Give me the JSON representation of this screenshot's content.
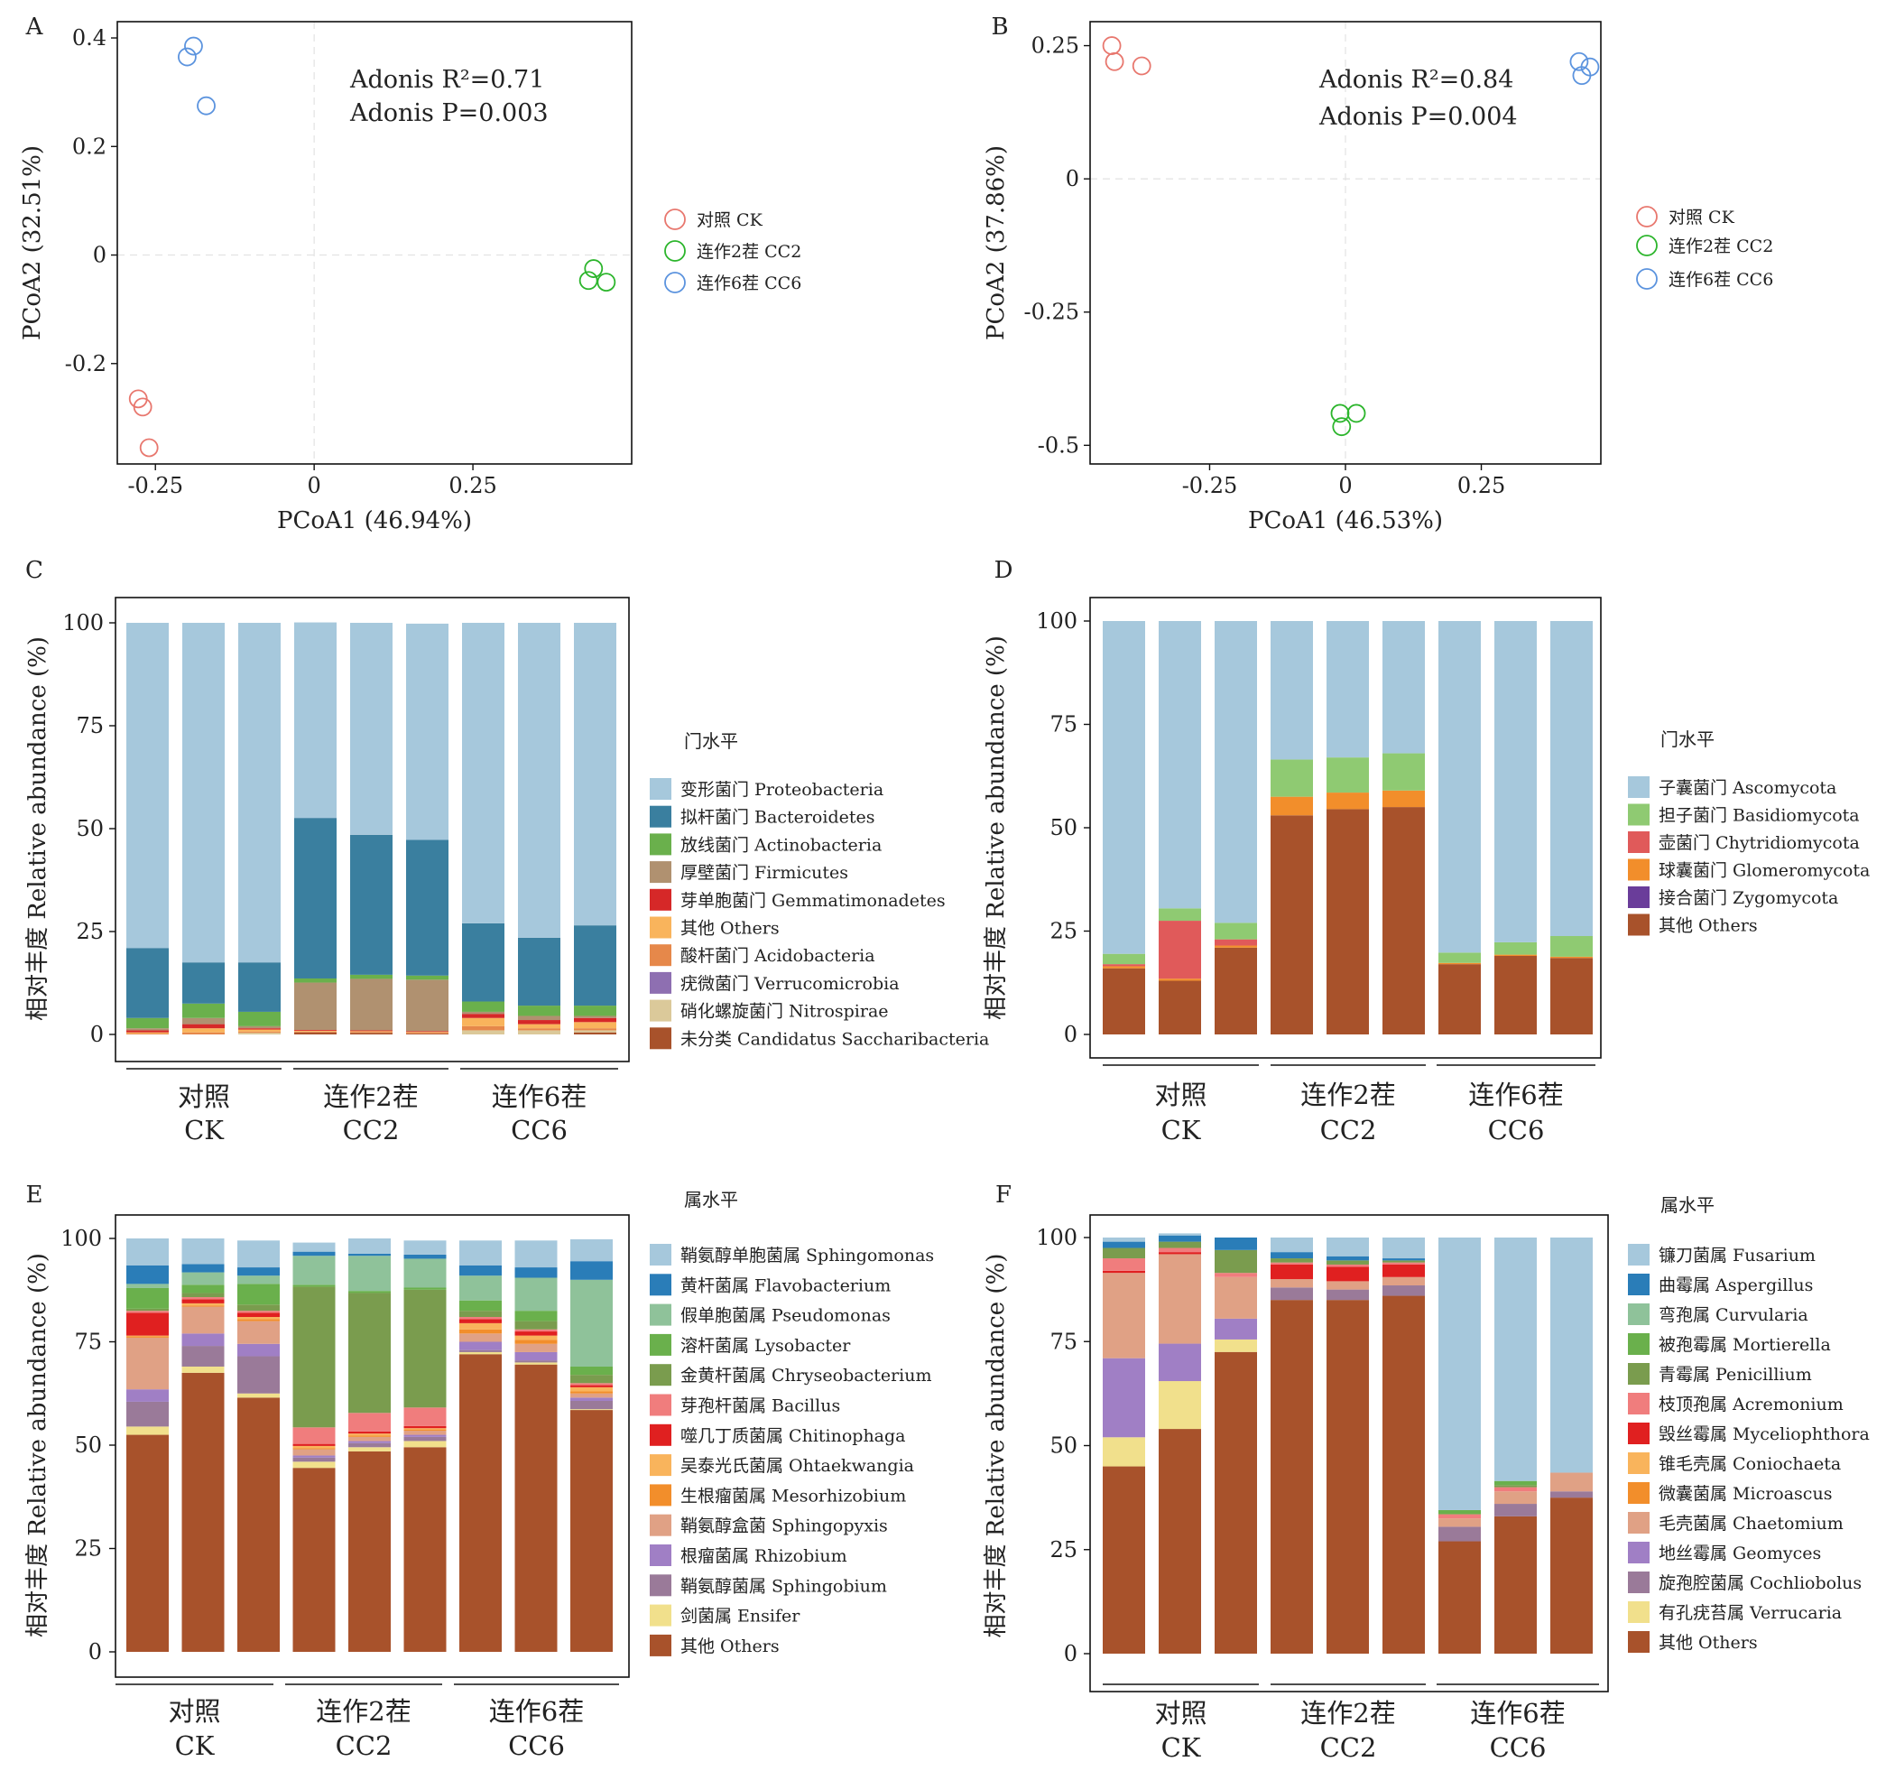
{
  "chart_data": [
    {
      "panel": "A",
      "type": "scatter",
      "xlabel": "PCoA1 (46.94%)",
      "ylabel": "PCoA2 (32.51%)",
      "xlim": [
        -0.31,
        0.5
      ],
      "ylim": [
        -0.385,
        0.43
      ],
      "xticks": [
        -0.25,
        0,
        0.25
      ],
      "xtick_labels": [
        "-0.25",
        "0",
        "0.25"
      ],
      "yticks": [
        -0.2,
        0,
        0.2,
        0.4
      ],
      "ytick_labels": [
        "-0.2",
        "0",
        "0.2",
        "0.4"
      ],
      "annotations": [
        "Adonis R²=0.71",
        "Adonis P=0.003"
      ],
      "legend_position": "right",
      "series": [
        {
          "name": "对照 CK",
          "color": "#e8776e",
          "points": [
            [
              -0.277,
              -0.265
            ],
            [
              -0.27,
              -0.28
            ],
            [
              -0.26,
              -0.355
            ]
          ]
        },
        {
          "name": "连作2茬  CC2",
          "color": "#2cb52c",
          "points": [
            [
              0.44,
              -0.025
            ],
            [
              0.432,
              -0.047
            ],
            [
              0.46,
              -0.05
            ]
          ]
        },
        {
          "name": "连作6茬  CC6",
          "color": "#5b93de",
          "points": [
            [
              -0.19,
              0.385
            ],
            [
              -0.2,
              0.365
            ],
            [
              -0.17,
              0.275
            ]
          ]
        }
      ]
    },
    {
      "panel": "B",
      "type": "scatter",
      "xlabel": "PCoA1 (46.53%)",
      "ylabel": "PCoA2 (37.86%)",
      "xlim": [
        -0.47,
        0.47
      ],
      "ylim": [
        -0.535,
        0.295
      ],
      "xticks": [
        -0.25,
        0,
        0.25
      ],
      "xtick_labels": [
        "-0.25",
        "0",
        "0.25"
      ],
      "yticks": [
        -0.5,
        -0.25,
        0,
        0.25
      ],
      "ytick_labels": [
        "-0.5",
        "-0.25",
        "0",
        "0.25"
      ],
      "annotations": [
        "Adonis R²=0.84",
        "Adonis P=0.004"
      ],
      "legend_position": "right",
      "series": [
        {
          "name": "对照 CK",
          "color": "#e8776e",
          "points": [
            [
              -0.43,
              0.25
            ],
            [
              -0.425,
              0.22
            ],
            [
              -0.375,
              0.212
            ]
          ]
        },
        {
          "name": "连作2茬  CC2",
          "color": "#2cb52c",
          "points": [
            [
              -0.01,
              -0.44
            ],
            [
              0.02,
              -0.44
            ],
            [
              -0.007,
              -0.465
            ]
          ]
        },
        {
          "name": "连作6茬  CC6",
          "color": "#5b93de",
          "points": [
            [
              0.43,
              0.22
            ],
            [
              0.45,
              0.21
            ],
            [
              0.435,
              0.194
            ]
          ]
        }
      ]
    },
    {
      "panel": "C",
      "type": "bar",
      "stacked": true,
      "ylabel": "相对丰度 Relative abundance (%)",
      "ylim": [
        0,
        100
      ],
      "yticks": [
        0,
        25,
        50,
        75,
        100
      ],
      "ytick_labels": [
        "0",
        "25",
        "50",
        "75",
        "100"
      ],
      "groups": [
        {
          "top": "对照",
          "bottom": "CK"
        },
        {
          "top": "连作2茬",
          "bottom": "CC2"
        },
        {
          "top": "连作6茬",
          "bottom": "CC6"
        }
      ],
      "legend_title": "门水平",
      "legend_position": "right",
      "series": [
        {
          "name": "变形菌门 Proteobacteria",
          "color": "#a6c8dc",
          "values": [
            79,
            82.5,
            82.5,
            47.5,
            51.5,
            52.5,
            73,
            76.5,
            73.5
          ]
        },
        {
          "name": "拟杆菌门 Bacteroidetes",
          "color": "#3a7f9f",
          "values": [
            17,
            10,
            12,
            39,
            34,
            33,
            19,
            16.5,
            19.5
          ]
        },
        {
          "name": "放线菌门 Actinobacteria",
          "color": "#6ab04c",
          "values": [
            2.5,
            3.5,
            3.5,
            1,
            1,
            1,
            2.5,
            2.5,
            2.5
          ]
        },
        {
          "name": "厚壁菌门 Firmicutes",
          "color": "#b09170",
          "values": [
            0.5,
            1.5,
            0.5,
            11.5,
            12.5,
            12.5,
            0.5,
            1,
            0.5
          ]
        },
        {
          "name": "芽单胞菌门 Gemmatimonadetes",
          "color": "#d62828",
          "values": [
            0.5,
            1,
            0.3,
            0.2,
            0.2,
            0.2,
            1,
            1,
            1
          ]
        },
        {
          "name": "其他 Others",
          "color": "#f9b45c",
          "values": [
            0.3,
            1,
            0.5,
            0.2,
            0.2,
            0.2,
            2,
            1,
            1.5
          ]
        },
        {
          "name": "酸杆菌门 Acidobacteria",
          "color": "#e6884a",
          "values": [
            0.2,
            0.5,
            0.3,
            0.2,
            0.2,
            0.2,
            1,
            0.5,
            0.5
          ]
        },
        {
          "name": "疣微菌门 Verrucomicrobia",
          "color": "#8e6fb1",
          "values": [
            0,
            0,
            0,
            0,
            0,
            0,
            0,
            0,
            0
          ]
        },
        {
          "name": "硝化螺旋菌门 Nitrospirae",
          "color": "#dbc99a",
          "values": [
            0,
            0,
            0.4,
            0,
            0,
            0,
            1,
            1,
            0.5
          ]
        },
        {
          "name": "未分类 Candidatus Saccharibacteria",
          "color": "#a8522b",
          "values": [
            0,
            0,
            0,
            0.5,
            0.4,
            0.2,
            0,
            0,
            0.5
          ]
        }
      ]
    },
    {
      "panel": "D",
      "type": "bar",
      "stacked": true,
      "ylabel": "相对丰度 Relative abundance (%)",
      "ylim": [
        0,
        100
      ],
      "yticks": [
        0,
        25,
        50,
        75,
        100
      ],
      "ytick_labels": [
        "0",
        "25",
        "50",
        "75",
        "100"
      ],
      "groups": [
        {
          "top": "对照",
          "bottom": "CK"
        },
        {
          "top": "连作2茬",
          "bottom": "CC2"
        },
        {
          "top": "连作6茬",
          "bottom": "CC6"
        }
      ],
      "legend_title": "门水平",
      "legend_position": "right",
      "series": [
        {
          "name": "其他 Others",
          "color": "#a8522b",
          "values": [
            16,
            13,
            21,
            53,
            54.5,
            55,
            17,
            19,
            18.5
          ]
        },
        {
          "name": "接合菌门 Zygomycota",
          "color": "#6a3d9a",
          "values": [
            0,
            0,
            0,
            0,
            0,
            0,
            0,
            0,
            0
          ]
        },
        {
          "name": "球囊菌门 Glomeromycota",
          "color": "#f28e2b",
          "values": [
            0.5,
            0.5,
            0.5,
            4.5,
            4,
            4,
            0.3,
            0.3,
            0.3
          ]
        },
        {
          "name": "壶菌门 Chytridiomycota",
          "color": "#e05a5a",
          "values": [
            0.5,
            14,
            1.5,
            0,
            0,
            0,
            0,
            0,
            0
          ]
        },
        {
          "name": "担子菌门 Basidiomycota",
          "color": "#8fca72",
          "values": [
            2.5,
            3,
            4,
            9,
            8.5,
            9,
            2.5,
            3,
            5
          ]
        },
        {
          "name": "子囊菌门 Ascomycota",
          "color": "#a6c8dc",
          "values": [
            80.5,
            69.5,
            73,
            33.5,
            33,
            32,
            80.2,
            77.7,
            76.2
          ]
        }
      ]
    },
    {
      "panel": "E",
      "type": "bar",
      "stacked": true,
      "ylabel": "相对丰度 Relative abundance (%)",
      "ylim": [
        0,
        100
      ],
      "yticks": [
        0,
        25,
        50,
        75,
        100
      ],
      "ytick_labels": [
        "0",
        "25",
        "50",
        "75",
        "100"
      ],
      "groups": [
        {
          "top": "对照",
          "bottom": "CK"
        },
        {
          "top": "连作2茬",
          "bottom": "CC2"
        },
        {
          "top": "连作6茬",
          "bottom": "CC6"
        }
      ],
      "legend_title": "属水平",
      "legend_position": "right",
      "series": [
        {
          "name": "其他 Others",
          "color": "#a8522b",
          "values": [
            52.5,
            67.5,
            61.5,
            44.5,
            48.5,
            49.5,
            72,
            69.5,
            58.5
          ]
        },
        {
          "name": "剑菌属 Ensifer",
          "color": "#f1e08c",
          "values": [
            2,
            1.5,
            1,
            1.5,
            1,
            1.5,
            0.5,
            0.5,
            0.2
          ]
        },
        {
          "name": "鞘氨醇菌属 Sphingobium",
          "color": "#9a7a99",
          "values": [
            6,
            5,
            9,
            1,
            1,
            1,
            0.5,
            0.5,
            2
          ]
        },
        {
          "name": "根瘤菌属 Rhizobium",
          "color": "#a07fc5",
          "values": [
            3,
            3,
            3,
            0.5,
            0.5,
            0.5,
            2,
            2,
            0.8
          ]
        },
        {
          "name": "鞘氨醇盒菌 Sphingopyxis",
          "color": "#e0a185",
          "values": [
            12.5,
            6.5,
            5.5,
            1.5,
            1,
            1,
            2,
            2,
            1
          ]
        },
        {
          "name": "生根瘤菌属 Mesorhizobium",
          "color": "#f28e2b",
          "values": [
            0.3,
            0.3,
            0.5,
            0.3,
            0.3,
            0.3,
            1,
            1,
            0.5
          ]
        },
        {
          "name": "吴泰光氏菌属 Ohtaekwangia",
          "color": "#f9b45c",
          "values": [
            0.2,
            0.5,
            0.5,
            0.5,
            0.5,
            0.3,
            1.5,
            1,
            1
          ]
        },
        {
          "name": "噬几丁质菌属 Chitinophaga",
          "color": "#e02020",
          "values": [
            5.5,
            1,
            1,
            0.5,
            0.5,
            0.5,
            1,
            1,
            0.5
          ]
        },
        {
          "name": "芽孢杆菌属 Bacillus",
          "color": "#f07d7d",
          "values": [
            0.5,
            0.5,
            0.5,
            4,
            4.5,
            4.5,
            0.5,
            0.5,
            0.5
          ]
        },
        {
          "name": "金黄杆菌属 Chryseobacterium",
          "color": "#7a9c4e",
          "values": [
            0.5,
            1,
            1.5,
            34,
            29,
            28.5,
            1.5,
            2,
            2
          ]
        },
        {
          "name": "溶杆菌属 Lysobacter",
          "color": "#6ab04c",
          "values": [
            5,
            2,
            5,
            0.5,
            0.5,
            0.5,
            2.5,
            2.5,
            2
          ]
        },
        {
          "name": "假单胞菌属 Pseudomonas",
          "color": "#8fc29a",
          "values": [
            1,
            3,
            2,
            7,
            8.5,
            7,
            6,
            8,
            21
          ]
        },
        {
          "name": "黄杆菌属 Flavobacterium",
          "color": "#2a7db8",
          "values": [
            4.5,
            2,
            2,
            1,
            0.5,
            1,
            2.5,
            2.5,
            4.5
          ]
        },
        {
          "name": "鞘氨醇单胞菌属 Sphingomonas",
          "color": "#a6c8dc",
          "values": [
            6.5,
            6.2,
            6.5,
            2.2,
            3.7,
            3.4,
            6,
            6.5,
            5.3
          ]
        }
      ]
    },
    {
      "panel": "F",
      "type": "bar",
      "stacked": true,
      "ylabel": "相对丰度 Relative abundance (%)",
      "ylim": [
        0,
        100
      ],
      "yticks": [
        0,
        25,
        50,
        75,
        100
      ],
      "ytick_labels": [
        "0",
        "25",
        "50",
        "75",
        "100"
      ],
      "groups": [
        {
          "top": "对照",
          "bottom": "CK"
        },
        {
          "top": "连作2茬",
          "bottom": "CC2"
        },
        {
          "top": "连作6茬",
          "bottom": "CC6"
        }
      ],
      "legend_title": "属水平",
      "legend_position": "right",
      "series": [
        {
          "name": "其他 Others",
          "color": "#a8522b",
          "values": [
            45,
            54,
            72.5,
            85,
            85,
            86,
            27,
            33,
            37.5
          ]
        },
        {
          "name": "有孔疣苔属 Verrucaria",
          "color": "#f1e08c",
          "values": [
            7,
            11.5,
            3,
            0,
            0,
            0,
            0,
            0,
            0
          ]
        },
        {
          "name": "旋孢腔菌属 Cochliobolus",
          "color": "#9a7a99",
          "values": [
            0,
            0,
            0,
            3,
            2.5,
            2.5,
            3.5,
            3,
            1.5
          ]
        },
        {
          "name": "地丝霉属 Geomyces",
          "color": "#a07fc5",
          "values": [
            19,
            9,
            5,
            0,
            0,
            0,
            0,
            0,
            0
          ]
        },
        {
          "name": "毛壳菌属 Chaetomium",
          "color": "#e0a185",
          "values": [
            20.5,
            21.5,
            10,
            2,
            2,
            2,
            2,
            3,
            4.5
          ]
        },
        {
          "name": "微囊菌属 Microascus",
          "color": "#f28e2b",
          "values": [
            0,
            0,
            0,
            0,
            0,
            0,
            0,
            0,
            0
          ]
        },
        {
          "name": "锥毛壳属 Coniochaeta",
          "color": "#f9b45c",
          "values": [
            0,
            0,
            0,
            0,
            0,
            0,
            0,
            0,
            0
          ]
        },
        {
          "name": "毁丝霉属 Myceliophthora",
          "color": "#e02020",
          "values": [
            0.5,
            0.5,
            0,
            3.5,
            3.5,
            3,
            0,
            0,
            0
          ]
        },
        {
          "name": "枝顶孢属 Acremonium",
          "color": "#f07d7d",
          "values": [
            3,
            1,
            1,
            0.5,
            0.5,
            0.5,
            1,
            1,
            0
          ]
        },
        {
          "name": "青霉属 Penicillium",
          "color": "#7a9c4e",
          "values": [
            2.5,
            1.5,
            5.5,
            1,
            1,
            0.5,
            0,
            0.5,
            0
          ]
        },
        {
          "name": "被孢霉属 Mortierella",
          "color": "#6ab04c",
          "values": [
            0,
            0,
            0,
            0,
            0,
            0,
            1,
            1,
            0
          ]
        },
        {
          "name": "弯孢属 Curvularia",
          "color": "#8fc29a",
          "values": [
            0,
            0,
            0,
            0,
            0,
            0,
            0,
            0,
            0
          ]
        },
        {
          "name": "曲霉属 Aspergillus",
          "color": "#2a7db8",
          "values": [
            1.5,
            1.5,
            3,
            1.5,
            1,
            0.5,
            0,
            0,
            0
          ]
        },
        {
          "name": "镰刀菌属 Fusarium",
          "color": "#a6c8dc",
          "values": [
            1,
            0.5,
            0,
            3.5,
            4.5,
            5,
            65.5,
            58.5,
            56.5
          ]
        }
      ]
    }
  ]
}
